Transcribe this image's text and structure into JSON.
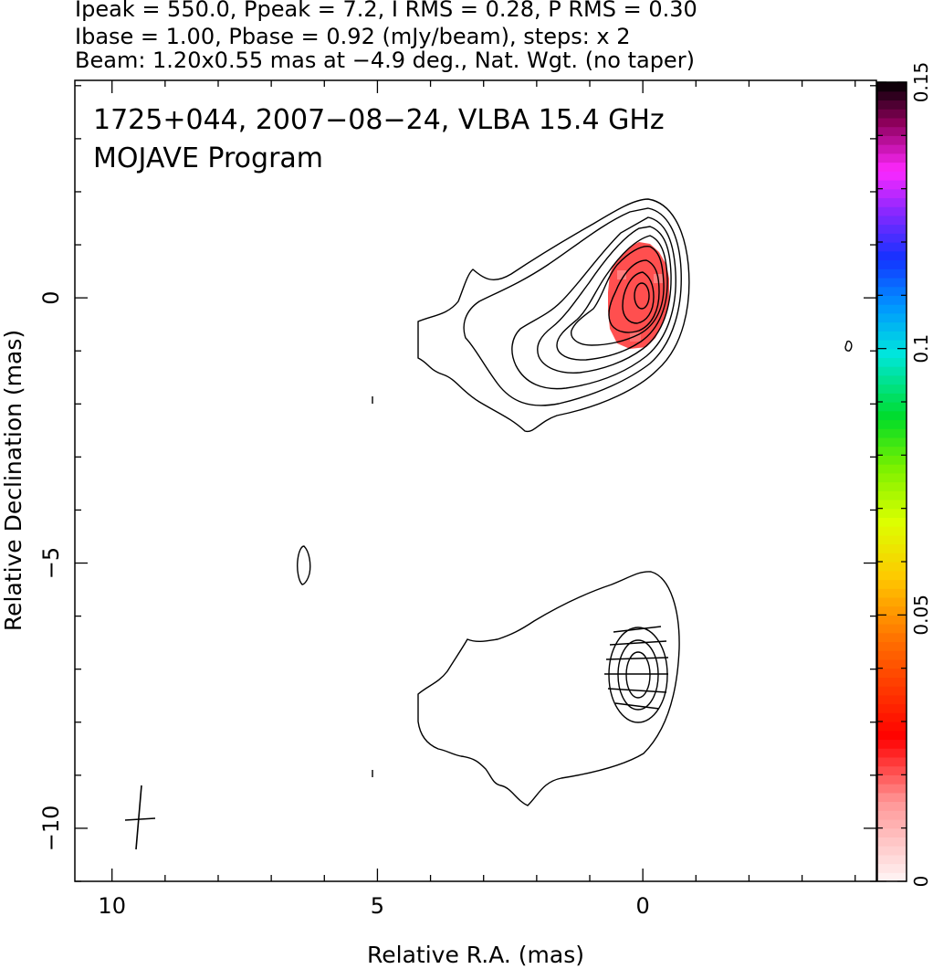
{
  "header": {
    "line1": "Ipeak = 550.0, Ppeak = 7.2, I RMS = 0.28, P RMS = 0.30",
    "line2": "Ibase = 1.00, Pbase = 0.92 (mJy/beam), steps: x 2",
    "line3": "Beam: 1.20x0.55 mas at −4.9 deg., Nat. Wgt. (no taper)"
  },
  "annotations": {
    "title": "1725+044, 2007−08−24, VLBA 15.4 GHz",
    "subtitle": "MOJAVE Program"
  },
  "chart_data": {
    "type": "contour",
    "xlabel": "Relative R.A. (mas)",
    "ylabel": "Relative Declination (mas)",
    "xlim": [
      10.7,
      -4.4
    ],
    "ylim": [
      -11.0,
      4.1
    ],
    "xticks": [
      10,
      5,
      0
    ],
    "xtick_labels": [
      "10",
      "5",
      "0"
    ],
    "yticks": [
      0,
      -5,
      -10
    ],
    "ytick_labels": [
      "0",
      "−5",
      "−10"
    ],
    "colorbar": {
      "min": 0,
      "max": 0.15,
      "ticks": [
        0,
        0.05,
        0.1,
        0.15
      ],
      "tick_labels": [
        "0",
        "0.05",
        "0.1",
        "0.15"
      ]
    },
    "panels": [
      {
        "name": "total intensity",
        "center": [
          0,
          0
        ],
        "peak": 550.0,
        "contour_steps": 9,
        "polarized_intensity_region": {
          "center": [
            0.1,
            -0.2
          ],
          "ra_halfwidth": 0.55,
          "dec_halfwidth": 0.95,
          "color": "#ff2a2a"
        }
      },
      {
        "name": "polarization",
        "center": [
          0,
          -7.0
        ],
        "contour_steps": 4,
        "evpa_ticks": 6
      }
    ],
    "beam": {
      "major_mas": 1.2,
      "minor_mas": 0.55,
      "pa_deg": -4.9,
      "position": [
        9.5,
        -9.8
      ]
    }
  }
}
